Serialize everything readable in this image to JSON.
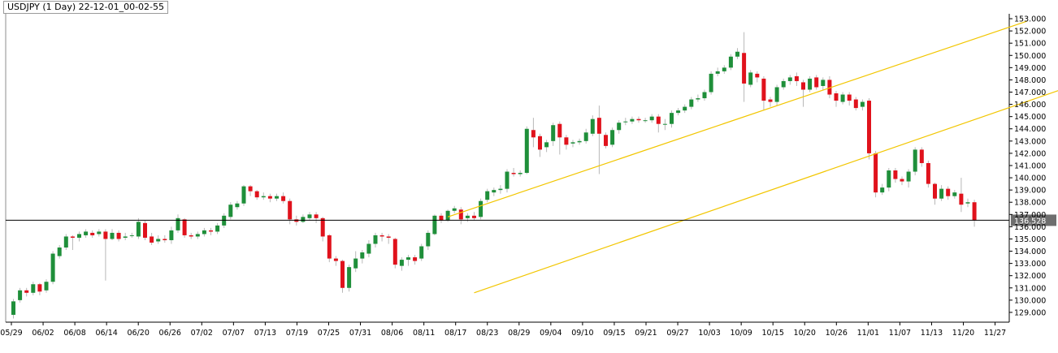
{
  "window": {
    "title": "USDJPY (1 Day) 22-12-01_00-02-55"
  },
  "colors": {
    "up": "#1f8f3a",
    "down": "#e0121c",
    "channel": "#f2c600",
    "price_line": "#000000",
    "wick": "#b8b8b8"
  },
  "chart_data": {
    "type": "candlestick",
    "title": "USDJPY (1 Day) 22-12-01_00-02-55",
    "y_range": [
      128.2,
      153.4
    ],
    "y_ticks": [
      "129.000",
      "130.000",
      "131.000",
      "132.000",
      "133.000",
      "134.000",
      "135.000",
      "136.000",
      "137.000",
      "138.000",
      "139.000",
      "140.000",
      "141.000",
      "142.000",
      "143.000",
      "144.000",
      "145.000",
      "146.000",
      "147.000",
      "148.000",
      "149.000",
      "150.000",
      "151.000",
      "152.000",
      "153.000"
    ],
    "x_labels": [
      "05/29",
      "06/02",
      "06/08",
      "06/14",
      "06/20",
      "06/26",
      "07/02",
      "07/07",
      "07/13",
      "07/19",
      "07/25",
      "07/31",
      "08/06",
      "08/11",
      "08/17",
      "08/23",
      "08/29",
      "09/04",
      "09/10",
      "09/15",
      "09/21",
      "09/27",
      "10/03",
      "10/09",
      "10/15",
      "10/20",
      "10/26",
      "11/01",
      "11/07",
      "11/13",
      "11/20",
      "11/27"
    ],
    "last_price": "136.528",
    "last_price_value": 136.528,
    "candles": [
      [
        128.8,
        129.9,
        128.5,
        130.1
      ],
      [
        130.0,
        130.8,
        129.8,
        131.0
      ],
      [
        130.8,
        130.6,
        130.3,
        131.0
      ],
      [
        130.6,
        131.3,
        130.4,
        131.5
      ],
      [
        131.3,
        130.7,
        130.4,
        131.4
      ],
      [
        130.8,
        131.5,
        130.6,
        131.7
      ],
      [
        131.5,
        133.8,
        131.3,
        134.0
      ],
      [
        133.6,
        134.3,
        133.4,
        134.5
      ],
      [
        134.3,
        135.2,
        134.1,
        135.4
      ],
      [
        135.2,
        135.1,
        134.1,
        135.3
      ],
      [
        135.1,
        135.4,
        134.8,
        135.6
      ],
      [
        135.3,
        135.6,
        135.1,
        135.8
      ],
      [
        135.5,
        135.3,
        135.1,
        135.7
      ],
      [
        135.4,
        135.6,
        135.2,
        135.8
      ],
      [
        135.6,
        135.0,
        131.6,
        135.8
      ],
      [
        135.0,
        135.5,
        134.9,
        135.8
      ],
      [
        135.5,
        135.0,
        134.8,
        135.7
      ],
      [
        135.1,
        135.2,
        134.9,
        135.5
      ],
      [
        135.3,
        135.3,
        135.1,
        135.5
      ],
      [
        135.2,
        136.4,
        135.0,
        136.7
      ],
      [
        136.3,
        135.1,
        134.9,
        136.5
      ],
      [
        135.2,
        134.7,
        134.5,
        135.5
      ],
      [
        134.8,
        135.0,
        134.6,
        135.3
      ],
      [
        135.0,
        134.9,
        134.7,
        135.3
      ],
      [
        134.9,
        135.7,
        134.6,
        136.0
      ],
      [
        135.7,
        136.7,
        135.5,
        137.0
      ],
      [
        136.6,
        135.3,
        135.1,
        136.7
      ],
      [
        135.3,
        135.2,
        135.0,
        135.5
      ],
      [
        135.2,
        135.4,
        135.0,
        135.6
      ],
      [
        135.4,
        135.7,
        135.2,
        135.9
      ],
      [
        135.7,
        135.6,
        135.3,
        135.9
      ],
      [
        135.6,
        136.1,
        135.4,
        136.3
      ],
      [
        136.1,
        136.9,
        135.9,
        137.1
      ],
      [
        136.8,
        137.8,
        136.6,
        138.0
      ],
      [
        137.6,
        137.9,
        137.4,
        138.1
      ],
      [
        137.9,
        139.3,
        137.7,
        139.4
      ],
      [
        139.3,
        138.9,
        138.5,
        139.4
      ],
      [
        138.9,
        138.4,
        138.2,
        139.0
      ],
      [
        138.4,
        138.5,
        138.2,
        138.8
      ],
      [
        138.5,
        138.3,
        138.0,
        138.7
      ],
      [
        138.3,
        138.5,
        138.1,
        138.7
      ],
      [
        138.5,
        138.1,
        137.9,
        138.8
      ],
      [
        138.1,
        136.6,
        136.2,
        138.3
      ],
      [
        136.6,
        136.4,
        136.1,
        136.9
      ],
      [
        136.4,
        136.8,
        136.3,
        137.0
      ],
      [
        136.7,
        137.0,
        136.5,
        137.2
      ],
      [
        137.0,
        136.7,
        136.3,
        137.2
      ],
      [
        136.7,
        135.2,
        134.8,
        136.8
      ],
      [
        135.3,
        133.4,
        133.1,
        135.4
      ],
      [
        133.4,
        133.2,
        132.8,
        133.6
      ],
      [
        133.2,
        131.0,
        130.6,
        133.3
      ],
      [
        131.0,
        132.7,
        130.7,
        132.9
      ],
      [
        132.6,
        133.4,
        132.3,
        134.0
      ],
      [
        133.4,
        133.9,
        133.0,
        134.1
      ],
      [
        133.8,
        134.6,
        133.5,
        134.9
      ],
      [
        134.6,
        135.3,
        134.3,
        135.5
      ],
      [
        135.3,
        135.2,
        134.8,
        135.5
      ],
      [
        135.2,
        135.1,
        134.6,
        135.4
      ],
      [
        135.0,
        132.9,
        132.6,
        135.1
      ],
      [
        132.8,
        133.3,
        132.4,
        133.5
      ],
      [
        133.3,
        133.5,
        132.8,
        133.7
      ],
      [
        133.5,
        133.2,
        132.9,
        133.7
      ],
      [
        133.4,
        134.4,
        133.2,
        134.6
      ],
      [
        134.4,
        135.5,
        134.1,
        135.7
      ],
      [
        135.4,
        136.9,
        135.3,
        137.0
      ],
      [
        136.9,
        136.5,
        136.3,
        137.1
      ],
      [
        136.5,
        137.3,
        136.4,
        137.4
      ],
      [
        137.3,
        137.5,
        137.1,
        137.7
      ],
      [
        137.4,
        136.6,
        136.2,
        137.6
      ],
      [
        136.7,
        136.9,
        136.4,
        137.1
      ],
      [
        136.9,
        136.7,
        136.5,
        137.2
      ],
      [
        136.8,
        138.1,
        136.6,
        138.3
      ],
      [
        138.2,
        138.9,
        138.0,
        139.1
      ],
      [
        138.8,
        139.0,
        138.5,
        139.2
      ],
      [
        139.0,
        139.1,
        138.7,
        139.4
      ],
      [
        139.1,
        140.5,
        138.8,
        140.7
      ],
      [
        140.4,
        140.3,
        140.1,
        140.8
      ],
      [
        140.3,
        140.4,
        140.1,
        140.6
      ],
      [
        140.4,
        144.0,
        140.3,
        144.2
      ],
      [
        143.9,
        143.3,
        142.5,
        144.9
      ],
      [
        143.4,
        142.3,
        141.7,
        143.6
      ],
      [
        142.5,
        142.9,
        142.1,
        143.1
      ],
      [
        143.0,
        144.3,
        142.6,
        144.5
      ],
      [
        144.4,
        143.3,
        141.9,
        144.6
      ],
      [
        143.3,
        142.7,
        142.3,
        143.5
      ],
      [
        142.8,
        142.9,
        142.5,
        143.1
      ],
      [
        142.9,
        143.0,
        142.7,
        143.2
      ],
      [
        143.0,
        143.7,
        142.8,
        144.0
      ],
      [
        143.6,
        144.8,
        143.4,
        145.1
      ],
      [
        144.9,
        143.6,
        140.3,
        145.9
      ],
      [
        143.5,
        142.6,
        142.4,
        143.7
      ],
      [
        142.7,
        143.9,
        142.5,
        144.1
      ],
      [
        143.9,
        144.5,
        143.6,
        144.7
      ],
      [
        144.6,
        144.6,
        144.3,
        144.9
      ],
      [
        144.6,
        144.8,
        144.4,
        145.0
      ],
      [
        144.8,
        144.7,
        144.5,
        145.0
      ],
      [
        144.7,
        144.7,
        144.5,
        144.9
      ],
      [
        144.7,
        145.0,
        144.5,
        145.2
      ],
      [
        145.0,
        144.4,
        143.7,
        145.2
      ],
      [
        144.4,
        144.4,
        143.9,
        144.8
      ],
      [
        144.4,
        145.3,
        144.1,
        145.5
      ],
      [
        145.3,
        145.5,
        145.1,
        145.7
      ],
      [
        145.5,
        145.8,
        145.3,
        146.0
      ],
      [
        145.8,
        146.4,
        145.6,
        146.6
      ],
      [
        146.4,
        146.5,
        146.2,
        146.8
      ],
      [
        146.5,
        147.0,
        146.3,
        147.2
      ],
      [
        147.0,
        148.5,
        146.8,
        148.7
      ],
      [
        148.5,
        148.7,
        148.3,
        149.0
      ],
      [
        148.7,
        149.0,
        148.5,
        149.2
      ],
      [
        149.0,
        149.9,
        148.8,
        150.1
      ],
      [
        149.9,
        150.3,
        149.7,
        150.6
      ],
      [
        150.2,
        147.7,
        146.2,
        151.9
      ],
      [
        147.6,
        148.6,
        147.4,
        148.8
      ],
      [
        148.5,
        148.2,
        147.8,
        148.7
      ],
      [
        148.1,
        146.3,
        145.5,
        148.3
      ],
      [
        146.4,
        146.2,
        145.8,
        146.6
      ],
      [
        146.2,
        147.4,
        145.9,
        147.6
      ],
      [
        147.4,
        147.9,
        147.2,
        148.1
      ],
      [
        147.9,
        148.2,
        147.6,
        148.4
      ],
      [
        148.3,
        147.9,
        147.5,
        148.6
      ],
      [
        147.8,
        147.2,
        145.8,
        148.0
      ],
      [
        147.2,
        148.1,
        147.0,
        148.3
      ],
      [
        148.2,
        147.4,
        147.2,
        148.4
      ],
      [
        147.5,
        148.0,
        147.2,
        148.2
      ],
      [
        148.0,
        146.8,
        146.5,
        148.3
      ],
      [
        146.9,
        146.3,
        145.8,
        147.1
      ],
      [
        146.2,
        146.8,
        146.0,
        147.0
      ],
      [
        146.8,
        146.3,
        145.9,
        147.0
      ],
      [
        146.4,
        145.7,
        145.5,
        146.6
      ],
      [
        145.8,
        146.2,
        145.5,
        146.4
      ],
      [
        146.3,
        142.0,
        141.5,
        146.5
      ],
      [
        142.0,
        138.8,
        138.4,
        142.2
      ],
      [
        138.8,
        139.2,
        138.6,
        139.5
      ],
      [
        139.2,
        140.6,
        138.9,
        140.8
      ],
      [
        140.6,
        139.9,
        139.6,
        140.8
      ],
      [
        139.9,
        139.7,
        139.4,
        140.1
      ],
      [
        139.7,
        140.5,
        139.2,
        140.7
      ],
      [
        140.5,
        142.3,
        140.2,
        142.5
      ],
      [
        142.3,
        141.2,
        140.9,
        142.5
      ],
      [
        141.2,
        139.5,
        139.2,
        141.4
      ],
      [
        139.5,
        138.3,
        137.8,
        139.6
      ],
      [
        138.3,
        139.1,
        138.1,
        139.4
      ],
      [
        139.1,
        138.5,
        138.2,
        139.3
      ],
      [
        138.5,
        138.8,
        138.3,
        139.0
      ],
      [
        138.7,
        137.8,
        137.2,
        140.0
      ],
      [
        137.9,
        138.0,
        137.6,
        138.3
      ],
      [
        138.0,
        136.5,
        136.0,
        138.2
      ]
    ],
    "channel_lines": [
      {
        "x1": 66,
        "y1": 136.8,
        "x2": 154,
        "y2": 152.8
      },
      {
        "x1": 70,
        "y1": 130.6,
        "x2": 164,
        "y2": 148.1
      }
    ]
  }
}
